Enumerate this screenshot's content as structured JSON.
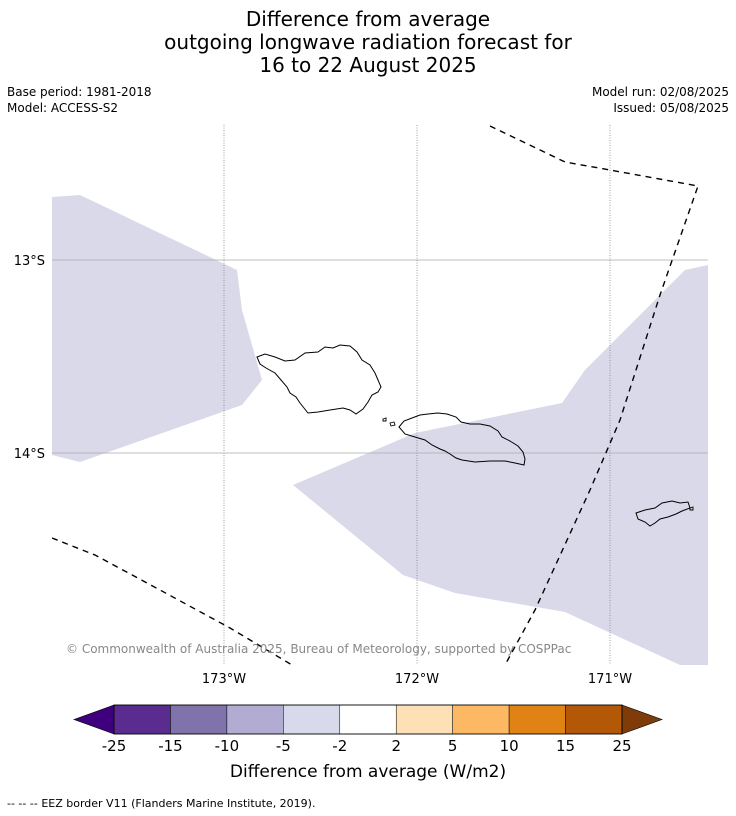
{
  "title": {
    "line1": "Difference from average",
    "line2": "outgoing longwave radiation forecast for",
    "line3": "16 to 22 August 2025"
  },
  "meta": {
    "base_period": "Base period: 1981-2018",
    "model": "Model: ACCESS-S2",
    "model_run": "Model run: 02/08/2025",
    "issued": "Issued: 05/08/2025"
  },
  "map": {
    "lat_labels": [
      "13°S",
      "14°S"
    ],
    "lon_labels": [
      "173°W",
      "172°W",
      "171°W"
    ],
    "copyright": "© Commonwealth of Australia 2025, Bureau of Meteorology, supported by COSPPac",
    "anomaly_fill_color": "#d9d9ea",
    "shaded_category": "-5 to -2"
  },
  "colorbar": {
    "ticks": [
      "-25",
      "-15",
      "-10",
      "-5",
      "-2",
      "2",
      "5",
      "10",
      "15",
      "25"
    ],
    "colors": [
      "#3f007d",
      "#5b2c90",
      "#8073ac",
      "#b2abd2",
      "#d8daeb",
      "#ffffff",
      "#fee0b6",
      "#fdb863",
      "#e08214",
      "#b35806",
      "#7f3b08"
    ],
    "label": "Difference from average (W/m2)"
  },
  "legend": {
    "eez_symbol": "--  --  --",
    "eez_text": "EEZ border V11 (Flanders Marine Institute, 2019)."
  }
}
